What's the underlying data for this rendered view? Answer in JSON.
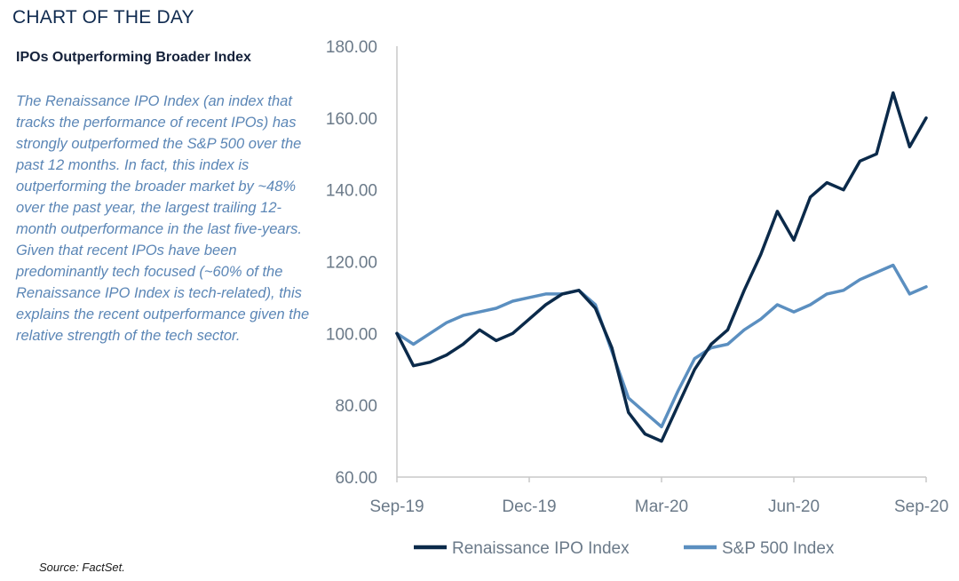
{
  "header": {
    "label": "CHART OF THE DAY"
  },
  "subtitle": "IPOs Outperforming Broader Index",
  "description": "The Renaissance IPO Index (an index that tracks the performance of recent IPOs) has strongly outperformed the S&P 500 over the past 12 months. In fact, this index is outperforming the broader market by ~48% over the past year, the largest trailing 12-month outperformance in the last five-years. Given that recent IPOs have been predominantly tech focused (~60% of the Renaissance IPO Index is tech-related), this explains the recent outperformance given the relative strength of the tech sector.",
  "source": "Source: FactSet.",
  "colors": {
    "ipo": "#0b2a4a",
    "sp500": "#5b8fc0",
    "axis": "#c8c8c8"
  },
  "chart_data": {
    "type": "line",
    "ylim": [
      60,
      180
    ],
    "x": [
      "Sep-19",
      "Sep-19",
      "Oct-19",
      "Oct-19",
      "Nov-19",
      "Nov-19",
      "Dec-19",
      "Dec-19",
      "Jan-20",
      "Jan-20",
      "Feb-20",
      "Feb-20",
      "Feb-20",
      "Mar-20",
      "Mar-20",
      "Mar-20",
      "Mar-20",
      "Apr-20",
      "Apr-20",
      "Apr-20",
      "May-20",
      "May-20",
      "Jun-20",
      "Jun-20",
      "Jun-20",
      "Jul-20",
      "Jul-20",
      "Jul-20",
      "Aug-20",
      "Aug-20",
      "Aug-20",
      "Aug-20",
      "Sep-20"
    ],
    "series": [
      {
        "name": "Renaissance IPO Index",
        "values": [
          100,
          91,
          92,
          94,
          97,
          101,
          98,
          100,
          104,
          108,
          111,
          112,
          107,
          96,
          78,
          72,
          70,
          80,
          90,
          97,
          101,
          112,
          122,
          134,
          126,
          138,
          142,
          140,
          148,
          150,
          167,
          152,
          160
        ]
      },
      {
        "name": "S&P 500 Index",
        "values": [
          100,
          97,
          100,
          103,
          105,
          106,
          107,
          109,
          110,
          111,
          111,
          112,
          108,
          95,
          82,
          78,
          74,
          84,
          93,
          96,
          97,
          101,
          104,
          108,
          106,
          108,
          111,
          112,
          115,
          117,
          119,
          111,
          113
        ]
      }
    ],
    "yticks": [
      "60.00",
      "80.00",
      "100.00",
      "120.00",
      "140.00",
      "160.00",
      "180.00"
    ],
    "xticks": [
      "Sep-19",
      "Dec-19",
      "Mar-20",
      "Jun-20",
      "Sep-20"
    ],
    "legend": {
      "position": "bottom",
      "entries": [
        "Renaissance IPO Index",
        "S&P 500 Index"
      ]
    }
  }
}
